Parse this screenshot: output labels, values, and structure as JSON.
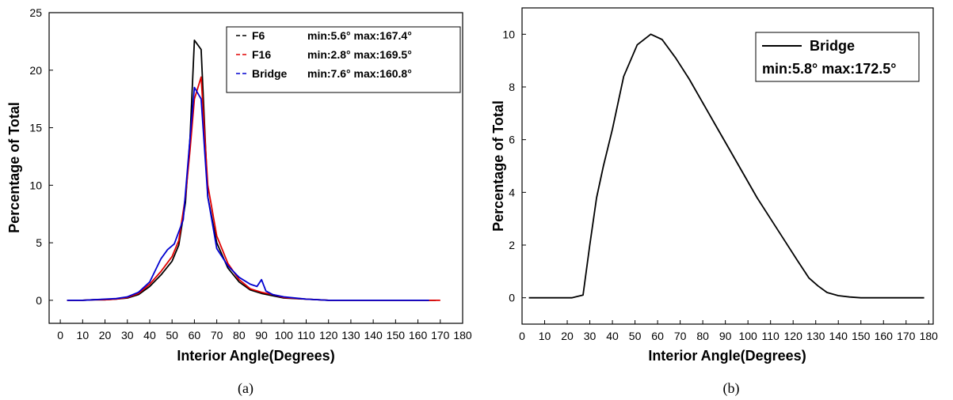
{
  "chart_data": [
    {
      "type": "line",
      "caption": "(a)",
      "xlabel": "Interior Angle(Degrees)",
      "ylabel": "Percentage of Total",
      "xlim": [
        -5,
        180
      ],
      "ylim": [
        -2,
        25
      ],
      "xticks": [
        0,
        10,
        20,
        30,
        40,
        50,
        60,
        70,
        80,
        90,
        100,
        110,
        120,
        130,
        140,
        150,
        160,
        170,
        180
      ],
      "yticks": [
        0,
        5,
        10,
        15,
        20,
        25
      ],
      "legend_position": "top-right",
      "series": [
        {
          "name": "F6",
          "stats": "min:5.6° max:167.4°",
          "color": "#000000",
          "legend_dash": true,
          "x": [
            3,
            10,
            15,
            20,
            25,
            30,
            35,
            40,
            45,
            50,
            53,
            56,
            58,
            60,
            63,
            66,
            70,
            75,
            80,
            85,
            90,
            95,
            100,
            110,
            120,
            130,
            140,
            150,
            160,
            168
          ],
          "y": [
            0,
            0,
            0.05,
            0.05,
            0.1,
            0.2,
            0.5,
            1.2,
            2.2,
            3.4,
            4.8,
            8.5,
            14,
            22.6,
            21.8,
            9,
            5,
            2.8,
            1.6,
            0.9,
            0.6,
            0.4,
            0.2,
            0.1,
            0,
            0,
            0,
            0,
            0,
            0
          ]
        },
        {
          "name": "F16",
          "stats": "min:2.8° max:169.5°",
          "color": "#e00000",
          "legend_dash": true,
          "x": [
            3,
            10,
            15,
            20,
            25,
            30,
            35,
            40,
            45,
            50,
            53,
            56,
            58,
            60,
            63,
            66,
            70,
            75,
            80,
            85,
            90,
            95,
            100,
            110,
            120,
            130,
            140,
            150,
            160,
            170
          ],
          "y": [
            0,
            0,
            0.05,
            0.05,
            0.1,
            0.25,
            0.6,
            1.4,
            2.5,
            3.8,
            5.2,
            9,
            13,
            17.5,
            19.4,
            10,
            5.6,
            3.2,
            1.8,
            1,
            0.7,
            0.5,
            0.25,
            0.1,
            0,
            0,
            0,
            0,
            0,
            0
          ]
        },
        {
          "name": "Bridge",
          "stats": "min:7.6° max:160.8°",
          "color": "#0000d0",
          "legend_dash": true,
          "x": [
            3,
            10,
            15,
            20,
            25,
            30,
            35,
            40,
            45,
            48,
            51,
            55,
            58,
            60,
            63,
            66,
            70,
            75,
            80,
            85,
            88,
            90,
            92,
            95,
            100,
            110,
            120,
            130,
            140,
            150,
            160,
            165
          ],
          "y": [
            0,
            0,
            0.05,
            0.1,
            0.15,
            0.3,
            0.7,
            1.6,
            3.6,
            4.4,
            4.9,
            7,
            14,
            18.5,
            17.5,
            9,
            4.5,
            3,
            2,
            1.4,
            1.2,
            1.8,
            0.8,
            0.5,
            0.3,
            0.1,
            0,
            0,
            0,
            0,
            0,
            0
          ]
        }
      ]
    },
    {
      "type": "line",
      "caption": "(b)",
      "xlabel": "Interior Angle(Degrees)",
      "ylabel": "Percentage of Total",
      "xlim": [
        0,
        182
      ],
      "ylim": [
        -1,
        11
      ],
      "xticks": [
        0,
        10,
        20,
        30,
        40,
        50,
        60,
        70,
        80,
        90,
        100,
        110,
        120,
        130,
        140,
        150,
        160,
        170,
        180
      ],
      "yticks": [
        0,
        2,
        4,
        6,
        8,
        10
      ],
      "legend_position": "top-right",
      "series": [
        {
          "name": "Bridge",
          "stats": "min:5.8° max:172.5°",
          "color": "#000000",
          "legend_dash": false,
          "x": [
            3,
            10,
            15,
            22,
            27,
            30,
            33,
            36,
            40,
            45,
            51,
            57,
            62,
            68,
            74,
            80,
            86,
            92,
            98,
            104,
            110,
            116,
            122,
            127,
            131,
            135,
            140,
            145,
            150,
            160,
            170,
            178
          ],
          "y": [
            0,
            0,
            0,
            0,
            0.1,
            2,
            3.8,
            5,
            6.4,
            8.4,
            9.6,
            10,
            9.8,
            9.1,
            8.3,
            7.4,
            6.5,
            5.6,
            4.7,
            3.8,
            3,
            2.2,
            1.4,
            0.75,
            0.45,
            0.2,
            0.08,
            0.03,
            0,
            0,
            0,
            0
          ]
        }
      ]
    }
  ]
}
